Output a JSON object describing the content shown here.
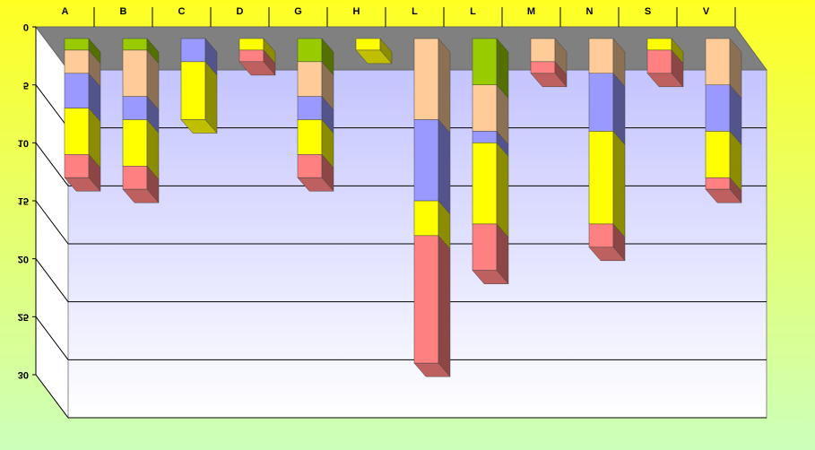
{
  "chart_data": {
    "type": "stacked-bar-3d",
    "categories": [
      "A",
      "B",
      "C",
      "D",
      "G",
      "H",
      "L",
      "L",
      "M",
      "N",
      "S",
      "V"
    ],
    "series": [
      {
        "color": "#99cc00",
        "values": [
          1,
          1,
          0,
          0,
          2,
          0,
          0,
          4,
          0,
          0,
          0,
          0
        ]
      },
      {
        "color": "#ffcc99",
        "values": [
          2,
          4,
          0,
          0,
          3,
          0,
          7,
          4,
          2,
          3,
          0,
          4
        ]
      },
      {
        "color": "#9999ff",
        "values": [
          3,
          2,
          2,
          0,
          2,
          0,
          7,
          1,
          0,
          5,
          0,
          4
        ]
      },
      {
        "color": "#ffff00",
        "values": [
          4,
          4,
          5,
          1,
          3,
          1,
          3,
          7,
          0,
          8,
          1,
          4
        ]
      },
      {
        "color": "#ff8080",
        "values": [
          2,
          2,
          0,
          1,
          2,
          0,
          11,
          4,
          1,
          2,
          2,
          1
        ]
      }
    ],
    "ylim": [
      0,
      30
    ],
    "yticks": [
      0,
      5,
      10,
      15,
      20,
      25,
      30
    ],
    "grid": true,
    "inverted": true
  }
}
